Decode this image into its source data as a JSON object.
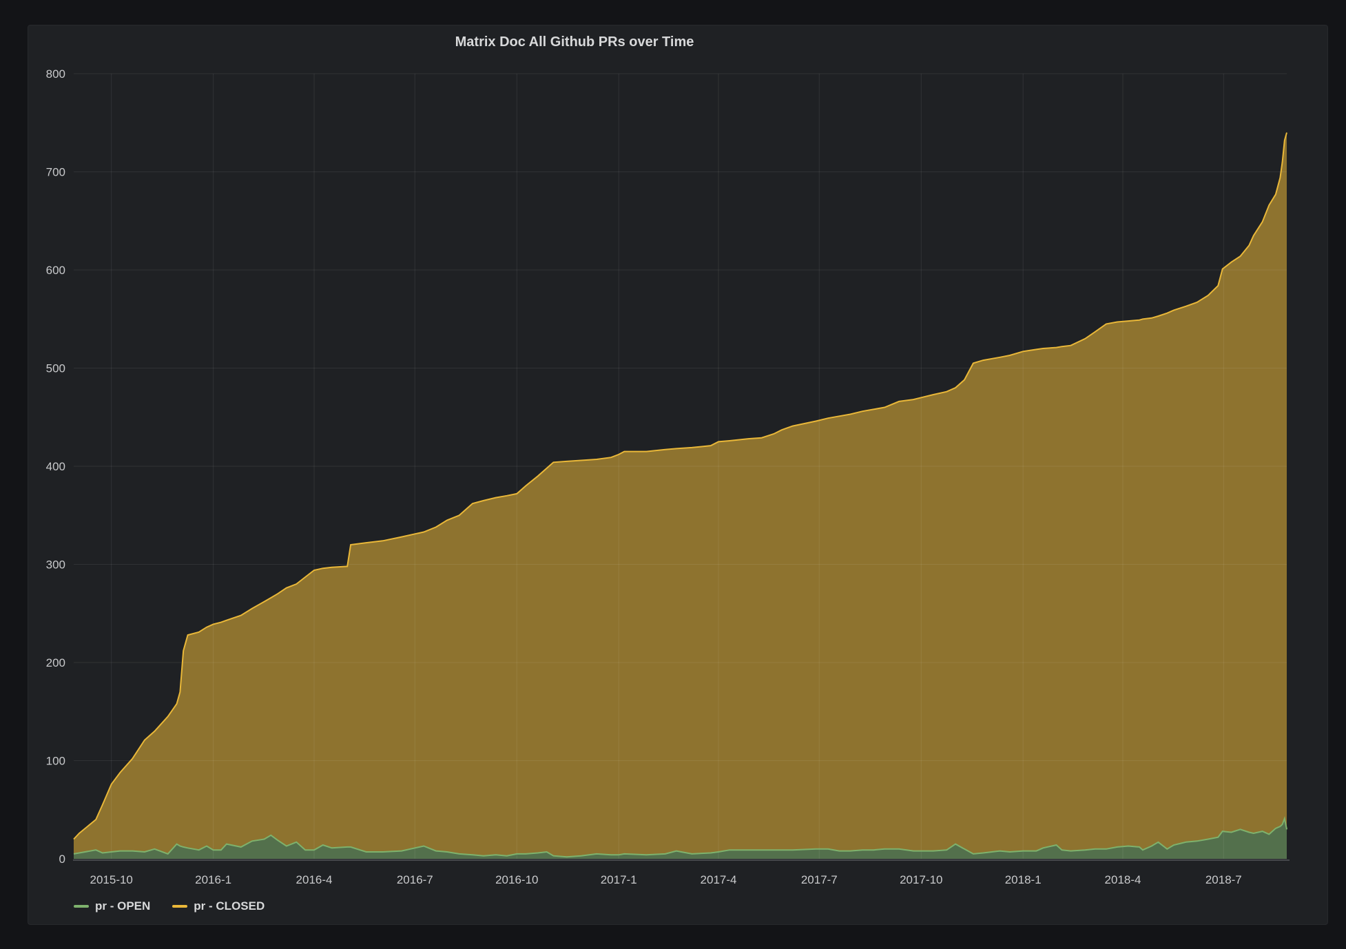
{
  "page": {
    "title": "Matrix Doc All Github PRs over Time"
  },
  "chart_data": {
    "type": "area",
    "stacked": true,
    "title": "Matrix Doc All Github PRs over Time",
    "xlabel": "",
    "ylabel": "",
    "grid": true,
    "legend_position": "bottom-left",
    "y_range": [
      0,
      800
    ],
    "y_ticks": [
      0,
      100,
      200,
      300,
      400,
      500,
      600,
      700,
      800
    ],
    "x_range": [
      "2015-08-28",
      "2018-08-27"
    ],
    "x_ticks": [
      {
        "label": "2015-10",
        "date": "2015-10-01"
      },
      {
        "label": "2016-1",
        "date": "2016-01-01"
      },
      {
        "label": "2016-4",
        "date": "2016-04-01"
      },
      {
        "label": "2016-7",
        "date": "2016-07-01"
      },
      {
        "label": "2016-10",
        "date": "2016-10-01"
      },
      {
        "label": "2017-1",
        "date": "2017-01-01"
      },
      {
        "label": "2017-4",
        "date": "2017-04-01"
      },
      {
        "label": "2017-7",
        "date": "2017-07-01"
      },
      {
        "label": "2017-10",
        "date": "2017-10-01"
      },
      {
        "label": "2018-1",
        "date": "2018-01-01"
      },
      {
        "label": "2018-4",
        "date": "2018-04-01"
      },
      {
        "label": "2018-7",
        "date": "2018-07-01"
      }
    ],
    "series": [
      {
        "name": "pr - OPEN",
        "color": "#7eb26d",
        "fill_opacity": 0.55
      },
      {
        "name": "pr - CLOSED",
        "color": "#eab839",
        "fill_opacity": 0.55
      }
    ],
    "points_format": [
      "date",
      "open",
      "closed"
    ],
    "points": [
      [
        "2015-08-28",
        5,
        15
      ],
      [
        "2015-09-02",
        6,
        20
      ],
      [
        "2015-09-17",
        9,
        31
      ],
      [
        "2015-09-23",
        6,
        49
      ],
      [
        "2015-10-01",
        7,
        69
      ],
      [
        "2015-10-09",
        8,
        80
      ],
      [
        "2015-10-20",
        8,
        94
      ],
      [
        "2015-10-31",
        7,
        114
      ],
      [
        "2015-11-09",
        10,
        120
      ],
      [
        "2015-11-21",
        5,
        140
      ],
      [
        "2015-11-29",
        15,
        143
      ],
      [
        "2015-12-02",
        13,
        157
      ],
      [
        "2015-12-05",
        12,
        200
      ],
      [
        "2015-12-09",
        11,
        217
      ],
      [
        "2015-12-19",
        9,
        222
      ],
      [
        "2015-12-26",
        13,
        223
      ],
      [
        "2016-01-01",
        9,
        230
      ],
      [
        "2016-01-08",
        9,
        232
      ],
      [
        "2016-01-13",
        15,
        228
      ],
      [
        "2016-01-26",
        12,
        236
      ],
      [
        "2016-02-05",
        18,
        237
      ],
      [
        "2016-02-16",
        20,
        242
      ],
      [
        "2016-02-22",
        24,
        242
      ],
      [
        "2016-02-28",
        19,
        251
      ],
      [
        "2016-03-07",
        13,
        263
      ],
      [
        "2016-03-16",
        17,
        263
      ],
      [
        "2016-03-24",
        9,
        278
      ],
      [
        "2016-04-01",
        9,
        285
      ],
      [
        "2016-04-09",
        14,
        282
      ],
      [
        "2016-04-17",
        11,
        286
      ],
      [
        "2016-05-01",
        12,
        286
      ],
      [
        "2016-05-04",
        12,
        308
      ],
      [
        "2016-05-18",
        7,
        315
      ],
      [
        "2016-06-02",
        7,
        317
      ],
      [
        "2016-06-19",
        8,
        320
      ],
      [
        "2016-07-01",
        11,
        320
      ],
      [
        "2016-07-09",
        13,
        320
      ],
      [
        "2016-07-20",
        8,
        330
      ],
      [
        "2016-07-30",
        7,
        338
      ],
      [
        "2016-08-10",
        5,
        345
      ],
      [
        "2016-08-22",
        4,
        358
      ],
      [
        "2016-09-01",
        3,
        362
      ],
      [
        "2016-09-12",
        4,
        364
      ],
      [
        "2016-09-22",
        3,
        367
      ],
      [
        "2016-10-01",
        5,
        367
      ],
      [
        "2016-10-09",
        5,
        375
      ],
      [
        "2016-10-20",
        6,
        384
      ],
      [
        "2016-10-28",
        7,
        391
      ],
      [
        "2016-11-03",
        3,
        401
      ],
      [
        "2016-11-15",
        2,
        403
      ],
      [
        "2016-11-28",
        3,
        403
      ],
      [
        "2016-12-12",
        5,
        402
      ],
      [
        "2016-12-25",
        4,
        405
      ],
      [
        "2017-01-01",
        4,
        408
      ],
      [
        "2017-01-06",
        5,
        410
      ],
      [
        "2017-01-26",
        4,
        411
      ],
      [
        "2017-02-12",
        5,
        412
      ],
      [
        "2017-02-22",
        8,
        410
      ],
      [
        "2017-03-08",
        5,
        414
      ],
      [
        "2017-03-25",
        6,
        415
      ],
      [
        "2017-04-01",
        7,
        418
      ],
      [
        "2017-04-11",
        9,
        417
      ],
      [
        "2017-04-28",
        9,
        419
      ],
      [
        "2017-05-10",
        9,
        420
      ],
      [
        "2017-05-21",
        9,
        424
      ],
      [
        "2017-05-28",
        9,
        428
      ],
      [
        "2017-06-07",
        9,
        432
      ],
      [
        "2017-06-28",
        10,
        436
      ],
      [
        "2017-07-09",
        10,
        439
      ],
      [
        "2017-07-19",
        8,
        443
      ],
      [
        "2017-07-29",
        8,
        445
      ],
      [
        "2017-08-09",
        9,
        447
      ],
      [
        "2017-08-19",
        9,
        449
      ],
      [
        "2017-08-29",
        10,
        450
      ],
      [
        "2017-09-11",
        10,
        456
      ],
      [
        "2017-09-24",
        8,
        460
      ],
      [
        "2017-10-01",
        8,
        462
      ],
      [
        "2017-10-12",
        8,
        465
      ],
      [
        "2017-10-24",
        9,
        467
      ],
      [
        "2017-11-01",
        15,
        465
      ],
      [
        "2017-11-09",
        10,
        478
      ],
      [
        "2017-11-17",
        5,
        500
      ],
      [
        "2017-11-26",
        6,
        502
      ],
      [
        "2017-12-11",
        8,
        503
      ],
      [
        "2017-12-20",
        7,
        506
      ],
      [
        "2018-01-01",
        8,
        509
      ],
      [
        "2018-01-13",
        8,
        511
      ],
      [
        "2018-01-19",
        11,
        509
      ],
      [
        "2018-01-31",
        14,
        507
      ],
      [
        "2018-02-05",
        9,
        513
      ],
      [
        "2018-02-13",
        8,
        515
      ],
      [
        "2018-02-26",
        9,
        521
      ],
      [
        "2018-03-07",
        10,
        527
      ],
      [
        "2018-03-17",
        10,
        535
      ],
      [
        "2018-03-27",
        12,
        535
      ],
      [
        "2018-04-06",
        13,
        535
      ],
      [
        "2018-04-16",
        12,
        537
      ],
      [
        "2018-04-19",
        9,
        541
      ],
      [
        "2018-04-27",
        13,
        538
      ],
      [
        "2018-05-03",
        17,
        536
      ],
      [
        "2018-05-11",
        10,
        546
      ],
      [
        "2018-05-17",
        14,
        545
      ],
      [
        "2018-05-28",
        17,
        546
      ],
      [
        "2018-06-07",
        18,
        549
      ],
      [
        "2018-06-17",
        20,
        554
      ],
      [
        "2018-06-26",
        22,
        562
      ],
      [
        "2018-06-30",
        28,
        573
      ],
      [
        "2018-07-08",
        27,
        581
      ],
      [
        "2018-07-16",
        30,
        584
      ],
      [
        "2018-07-24",
        27,
        598
      ],
      [
        "2018-07-28",
        26,
        609
      ],
      [
        "2018-08-05",
        28,
        621
      ],
      [
        "2018-08-11",
        25,
        641
      ],
      [
        "2018-08-17",
        31,
        646
      ],
      [
        "2018-08-21",
        33,
        661
      ],
      [
        "2018-08-23",
        35,
        675
      ],
      [
        "2018-08-25",
        41,
        691
      ],
      [
        "2018-08-27",
        30,
        710
      ]
    ]
  }
}
